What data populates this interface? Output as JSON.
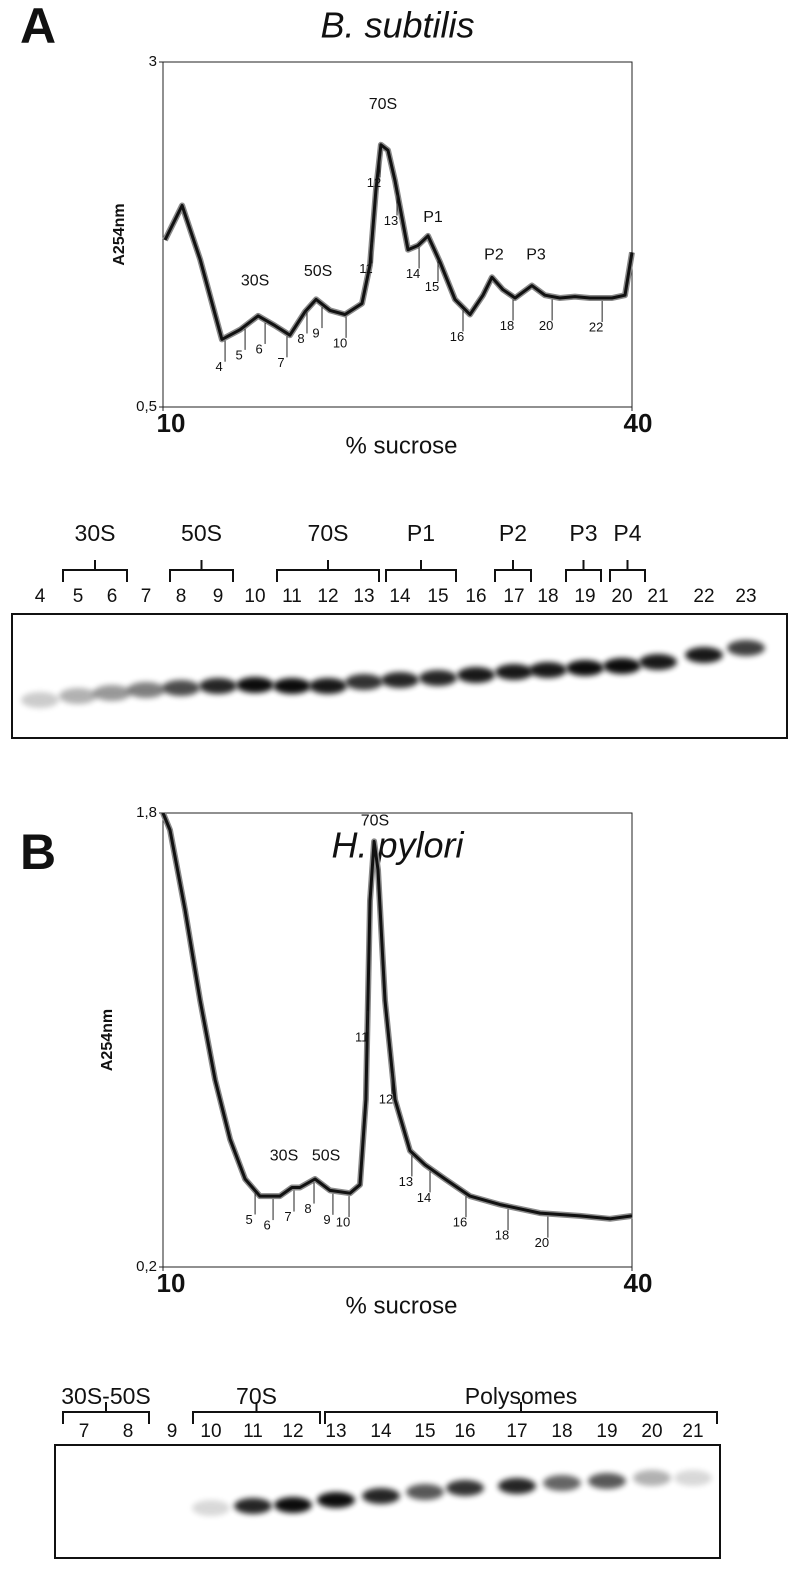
{
  "panel_labels": [
    "A",
    "B"
  ],
  "chart_data": [
    {
      "type": "line",
      "title": "B. subtilis",
      "xlabel": "% sucrose",
      "ylabel": "A254nm",
      "xlim": [
        10,
        40
      ],
      "xticks": [
        10,
        40
      ],
      "ylim": [
        0.5,
        3
      ],
      "yticks": [
        {
          "value": 0.5,
          "label": "0,5"
        },
        3
      ],
      "x": [
        10.13,
        11.22,
        12.37,
        13.77,
        14.93,
        16.08,
        17.16,
        18.12,
        19.08,
        19.79,
        20.68,
        21.64,
        22.73,
        23.24,
        23.62,
        23.94,
        24.39,
        24.84,
        25.67,
        26.31,
        26.95,
        27.72,
        28.68,
        29.64,
        30.47,
        31.04,
        31.75,
        32.52,
        33.6,
        34.43,
        35.39,
        36.35,
        37.31,
        38.72,
        39.55,
        40
      ],
      "series": [
        {
          "color": "#111111",
          "values": [
            1.71,
            1.96,
            1.57,
            0.99,
            1.06,
            1.16,
            1.09,
            1.02,
            1.19,
            1.28,
            1.2,
            1.17,
            1.25,
            1.53,
            2.07,
            2.4,
            2.36,
            2.14,
            1.64,
            1.67,
            1.74,
            1.55,
            1.28,
            1.17,
            1.31,
            1.44,
            1.35,
            1.29,
            1.38,
            1.31,
            1.29,
            1.3,
            1.29,
            1.29,
            1.31,
            1.62
          ]
        }
      ],
      "peak_labels": [
        {
          "text": "30S",
          "x": 15.89,
          "y": 1.41
        },
        {
          "text": "50S",
          "x": 19.92,
          "y": 1.48
        },
        {
          "text": "70S",
          "x": 24.07,
          "y": 2.69
        },
        {
          "text": "P1",
          "x": 27.27,
          "y": 1.87
        },
        {
          "text": "P2",
          "x": 31.17,
          "y": 1.6
        },
        {
          "text": "P3",
          "x": 33.86,
          "y": 1.6
        }
      ],
      "fractions": [
        {
          "label": "4",
          "x": 13.97
        },
        {
          "label": "5",
          "x": 15.25
        },
        {
          "label": "6",
          "x": 16.53
        },
        {
          "label": "7",
          "x": 17.93
        },
        {
          "label": "8",
          "x": 19.21
        },
        {
          "label": "9",
          "x": 20.17
        },
        {
          "label": "10",
          "x": 21.71
        },
        {
          "label": "11",
          "x": 23.37
        },
        {
          "label": "12",
          "x": 23.88
        },
        {
          "label": "13",
          "x": 24.97
        },
        {
          "label": "14",
          "x": 26.38
        },
        {
          "label": "15",
          "x": 27.59
        },
        {
          "label": "16",
          "x": 29.19
        },
        {
          "label": "18",
          "x": 32.39
        },
        {
          "label": "20",
          "x": 34.89
        },
        {
          "label": "22",
          "x": 38.09
        }
      ]
    },
    {
      "type": "line",
      "title": "H. pylori",
      "xlabel": "% sucrose",
      "ylabel": "A254nm",
      "xlim": [
        10,
        40
      ],
      "xticks": [
        10,
        40
      ],
      "ylim": [
        0.2,
        1.8
      ],
      "yticks": [
        {
          "value": 0.2,
          "label": "0,2"
        },
        {
          "value": 1.8,
          "label": "1,8"
        }
      ],
      "x": [
        10,
        10.45,
        11.41,
        12.37,
        13.33,
        14.29,
        15.25,
        16.2,
        17.48,
        18.25,
        18.76,
        19.72,
        20.68,
        21.96,
        22.6,
        22.98,
        23.24,
        23.5,
        23.75,
        24.2,
        24.84,
        25.8,
        26.76,
        28.04,
        29.64,
        31.56,
        34.12,
        36.67,
        38.59,
        40
      ],
      "series": [
        {
          "color": "#111111",
          "values": [
            1.8,
            1.74,
            1.46,
            1.14,
            0.86,
            0.65,
            0.51,
            0.45,
            0.45,
            0.48,
            0.48,
            0.51,
            0.47,
            0.46,
            0.49,
            0.79,
            1.49,
            1.7,
            1.6,
            1.14,
            0.79,
            0.61,
            0.56,
            0.51,
            0.45,
            0.42,
            0.39,
            0.38,
            0.37,
            0.38
          ]
        }
      ],
      "peak_labels": [
        {
          "text": "30S",
          "x": 17.74,
          "y": 0.59
        },
        {
          "text": "50S",
          "x": 20.43,
          "y": 0.59
        },
        {
          "text": "70S",
          "x": 23.56,
          "y": 1.77
        }
      ],
      "fractions": [
        {
          "label": "5",
          "x": 15.89
        },
        {
          "label": "6",
          "x": 17.04
        },
        {
          "label": "7",
          "x": 18.38
        },
        {
          "label": "8",
          "x": 19.66
        },
        {
          "label": "9",
          "x": 20.87
        },
        {
          "label": "10",
          "x": 21.9
        },
        {
          "label": "11",
          "x": 23.1
        },
        {
          "label": "12",
          "x": 24.65
        },
        {
          "label": "13",
          "x": 25.92
        },
        {
          "label": "14",
          "x": 27.08
        },
        {
          "label": "16",
          "x": 29.38
        },
        {
          "label": "18",
          "x": 32.07
        },
        {
          "label": "20",
          "x": 34.62
        }
      ]
    }
  ],
  "blots": [
    {
      "group_labels": [
        "30S",
        "50S",
        "70S",
        "P1",
        "P2",
        "P3",
        "P4"
      ],
      "lanes": [
        "4",
        "5",
        "6",
        "7",
        "8",
        "9",
        "10",
        "11",
        "12",
        "13",
        "14",
        "15",
        "16",
        "17",
        "18",
        "19",
        "20",
        "21",
        "22",
        "23"
      ]
    },
    {
      "group_labels": [
        "30S-50S",
        "70S",
        "Polysomes"
      ],
      "lanes": [
        "7",
        "8",
        "9",
        "10",
        "11",
        "12",
        "13",
        "14",
        "15",
        "16",
        "17",
        "18",
        "19",
        "20",
        "21"
      ]
    }
  ]
}
